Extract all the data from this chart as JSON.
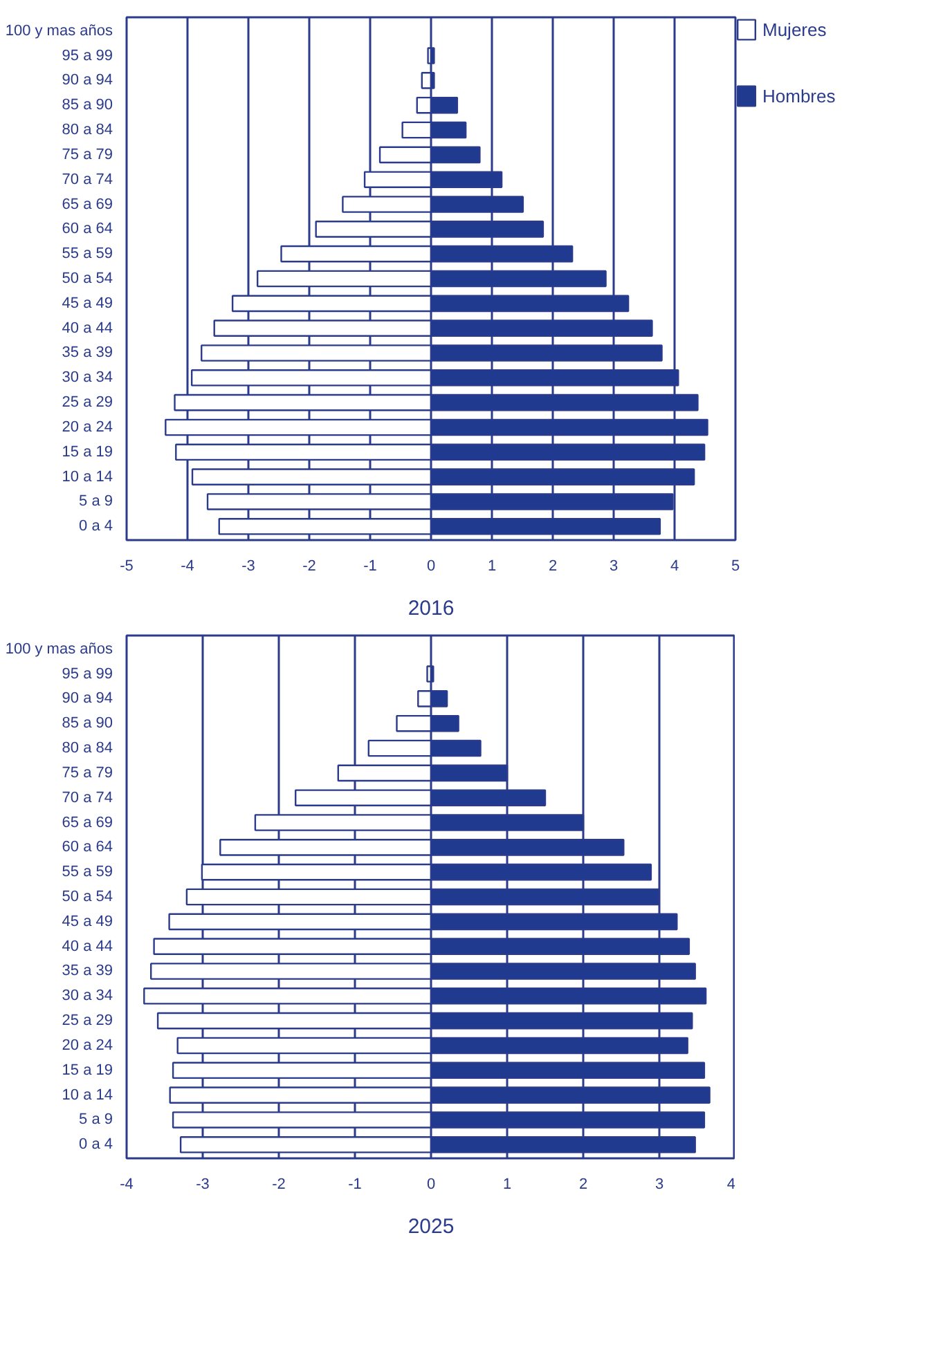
{
  "chart_data": [
    {
      "type": "bar",
      "orientation": "horizontal",
      "xlabel": "2016",
      "categories": [
        "100 y mas años",
        "95 a 99",
        "90 a 94",
        "85 a 90",
        "80 a 84",
        "75 a 79",
        "70 a 74",
        "65 a 69",
        "60 a 64",
        "55 a 59",
        "50 a 54",
        "45 a 49",
        "40 a 44",
        "35 a 39",
        "30 a 34",
        "25 a 29",
        "20 a 24",
        "15 a 19",
        "10 a 14",
        "5 a 9",
        "0 a 4"
      ],
      "series": [
        {
          "name": "Mujeres",
          "color": "#ffffff",
          "values": [
            null,
            -0.05,
            -0.15,
            -0.23,
            -0.47,
            -0.84,
            -1.09,
            -1.45,
            -1.89,
            -2.46,
            -2.85,
            -3.26,
            -3.56,
            -3.77,
            -3.93,
            -4.21,
            -4.36,
            -4.19,
            -3.92,
            -3.67,
            -3.48
          ]
        },
        {
          "name": "Hombres",
          "color": "#1f3a8f",
          "values": [
            null,
            0.05,
            0.05,
            0.43,
            0.57,
            0.8,
            1.16,
            1.51,
            1.84,
            2.32,
            2.87,
            3.24,
            3.63,
            3.79,
            4.06,
            4.38,
            4.54,
            4.49,
            4.32,
            3.97,
            3.76
          ]
        }
      ],
      "xlim": [
        -5,
        5
      ],
      "xticks": [
        -5,
        -4,
        -3,
        -2,
        -1,
        0,
        1,
        2,
        3,
        4,
        5
      ],
      "grid": "x",
      "legend": "right",
      "stacked": true
    },
    {
      "type": "bar",
      "orientation": "horizontal",
      "xlabel": "2025",
      "categories": [
        "100 y mas años",
        "95 a 99",
        "90 a 94",
        "85 a 90",
        "80 a 84",
        "75 a 79",
        "70 a 74",
        "65 a 69",
        "60 a 64",
        "55 a 59",
        "50 a 54",
        "45 a 49",
        "40 a 44",
        "35 a 39",
        "30 a 34",
        "25 a 29",
        "20 a 24",
        "15 a 19",
        "10 a 14",
        "5 a 9",
        "0 a 4"
      ],
      "series": [
        {
          "color": "#ffffff",
          "values": [
            null,
            -0.05,
            -0.17,
            -0.45,
            -0.82,
            -1.22,
            -1.78,
            -2.31,
            -2.77,
            -3.01,
            -3.21,
            -3.44,
            -3.64,
            -3.68,
            -3.77,
            -3.59,
            -3.33,
            -3.39,
            -3.43,
            -3.39,
            -3.29
          ]
        },
        {
          "color": "#1f3a8f",
          "values": [
            null,
            0.03,
            0.21,
            0.36,
            0.65,
            1.0,
            1.5,
            2.0,
            2.53,
            2.89,
            2.99,
            3.23,
            3.39,
            3.47,
            3.61,
            3.43,
            3.37,
            3.59,
            3.66,
            3.59,
            3.47
          ]
        }
      ],
      "xlim": [
        -4,
        4
      ],
      "xticks": [
        -4,
        -3,
        -2,
        -1,
        0,
        1,
        2,
        3,
        4
      ],
      "grid": "x",
      "stacked": true
    }
  ]
}
